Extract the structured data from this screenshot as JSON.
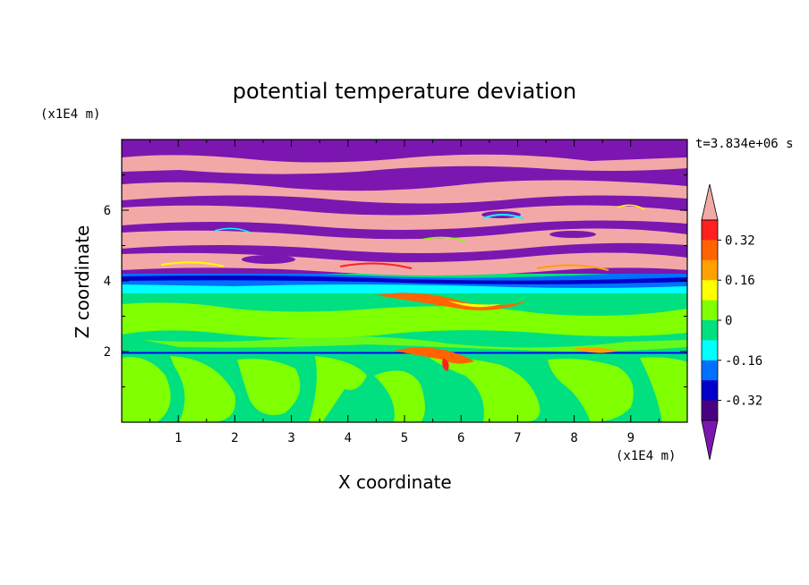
{
  "chart_data": {
    "type": "heatmap",
    "title": "potential temperature deviation",
    "xlabel": "X coordinate",
    "ylabel": "Z coordinate",
    "x_unit": "(x1E4 m)",
    "z_unit": "(x1E4 m)",
    "time_label": "t=3.834e+06 s",
    "xlim": [
      0,
      10
    ],
    "ylim": [
      0,
      8
    ],
    "x_ticks": [
      "1",
      "2",
      "3",
      "4",
      "5",
      "6",
      "7",
      "8",
      "9"
    ],
    "y_ticks": [
      "2",
      "4",
      "6"
    ],
    "colorbar": {
      "levels": [
        -0.48,
        -0.4,
        -0.32,
        -0.24,
        -0.16,
        -0.08,
        0,
        0.08,
        0.16,
        0.24,
        0.32,
        0.4,
        0.48
      ],
      "labels": [
        "0.32",
        "0.16",
        "0",
        "-0.16",
        "-0.32"
      ],
      "label_values": [
        0.32,
        0.16,
        0,
        -0.16,
        -0.32
      ],
      "colors_top_to_bottom": [
        "#f3a8a8",
        "#ff2020",
        "#ff6400",
        "#ffa000",
        "#ffff00",
        "#80ff00",
        "#00e080",
        "#00ffff",
        "#0070ff",
        "#0000c8",
        "#4b0082",
        "#7b17b0"
      ]
    },
    "bands": [
      {
        "region": "z 0-2",
        "description": "green (0) and yellow-green (0.08) cellular pattern"
      },
      {
        "region": "z 2-4",
        "description": "green layers with warm streaks near z=2 and z=3.5"
      },
      {
        "region": "z 4-8",
        "description": "alternating purple (<-0.48) and pink (>0.48) horizontal layers"
      }
    ]
  }
}
